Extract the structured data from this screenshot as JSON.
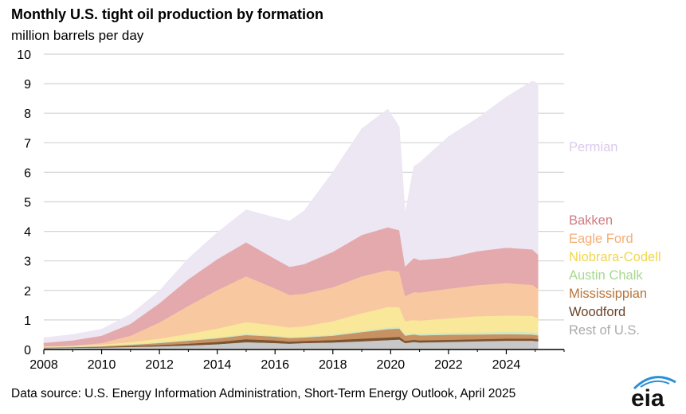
{
  "title": "Monthly U.S. tight oil production by formation",
  "subtitle": "million  barrels per day",
  "source": "Data source: U.S. Energy Information Administration, Short-Term Energy Outlook, April 2025",
  "logo_text": "eia",
  "chart_data": {
    "type": "area",
    "stacked": true,
    "title": "Monthly U.S. tight oil production by formation",
    "ylabel": "million  barrels per day",
    "xlim": [
      2008,
      2026
    ],
    "ylim": [
      0,
      10
    ],
    "xticks": [
      2008,
      2010,
      2012,
      2014,
      2016,
      2018,
      2020,
      2022,
      2024
    ],
    "yticks": [
      0,
      1,
      2,
      3,
      4,
      5,
      6,
      7,
      8,
      9,
      10
    ],
    "grid": "horizontal",
    "legend": "right, inline labels",
    "x": [
      2008.0,
      2009.0,
      2010.0,
      2011.0,
      2012.0,
      2013.0,
      2014.0,
      2015.0,
      2016.0,
      2016.5,
      2017.0,
      2018.0,
      2019.0,
      2019.9,
      2020.3,
      2020.5,
      2020.8,
      2021.0,
      2022.0,
      2023.0,
      2024.0,
      2024.9,
      2025.1
    ],
    "series": [
      {
        "name": "Rest of U.S.",
        "color": "#c8c8c8",
        "values": [
          0.05,
          0.06,
          0.07,
          0.09,
          0.11,
          0.14,
          0.18,
          0.25,
          0.22,
          0.2,
          0.22,
          0.24,
          0.28,
          0.32,
          0.34,
          0.22,
          0.26,
          0.24,
          0.26,
          0.28,
          0.3,
          0.3,
          0.28
        ]
      },
      {
        "name": "Woodford",
        "color": "#7a5331",
        "values": [
          0.01,
          0.01,
          0.02,
          0.03,
          0.04,
          0.06,
          0.08,
          0.1,
          0.09,
          0.07,
          0.07,
          0.08,
          0.09,
          0.09,
          0.09,
          0.07,
          0.07,
          0.07,
          0.07,
          0.07,
          0.07,
          0.07,
          0.07
        ]
      },
      {
        "name": "Mississippian",
        "color": "#c79162",
        "values": [
          0.01,
          0.01,
          0.02,
          0.04,
          0.07,
          0.1,
          0.12,
          0.14,
          0.13,
          0.12,
          0.12,
          0.15,
          0.22,
          0.28,
          0.28,
          0.18,
          0.18,
          0.17,
          0.17,
          0.16,
          0.15,
          0.14,
          0.13
        ]
      },
      {
        "name": "Austin Chalk",
        "color": "#cfe7c3",
        "values": [
          0.02,
          0.02,
          0.02,
          0.02,
          0.03,
          0.03,
          0.03,
          0.04,
          0.03,
          0.03,
          0.03,
          0.04,
          0.04,
          0.05,
          0.05,
          0.04,
          0.04,
          0.05,
          0.06,
          0.07,
          0.08,
          0.08,
          0.08
        ]
      },
      {
        "name": "Niobrara-Codell",
        "color": "#f9e79a",
        "values": [
          0.02,
          0.03,
          0.04,
          0.07,
          0.12,
          0.2,
          0.3,
          0.4,
          0.35,
          0.33,
          0.35,
          0.45,
          0.6,
          0.7,
          0.68,
          0.45,
          0.45,
          0.45,
          0.5,
          0.55,
          0.55,
          0.55,
          0.5
        ]
      },
      {
        "name": "Eagle Ford",
        "color": "#f8c9a1",
        "values": [
          0.0,
          0.0,
          0.05,
          0.22,
          0.55,
          0.95,
          1.3,
          1.55,
          1.25,
          1.1,
          1.1,
          1.15,
          1.25,
          1.25,
          1.2,
          0.85,
          0.95,
          0.95,
          1.0,
          1.05,
          1.1,
          1.05,
          1.0
        ]
      },
      {
        "name": "Bakken",
        "color": "#e4a9ac",
        "values": [
          0.12,
          0.18,
          0.25,
          0.4,
          0.65,
          0.9,
          1.05,
          1.15,
          1.0,
          0.95,
          1.0,
          1.2,
          1.4,
          1.45,
          1.4,
          1.0,
          1.15,
          1.1,
          1.05,
          1.15,
          1.2,
          1.2,
          1.15
        ]
      },
      {
        "name": "Permian",
        "color": "#ede6f3",
        "values": [
          0.17,
          0.2,
          0.22,
          0.32,
          0.42,
          0.7,
          0.9,
          1.1,
          1.4,
          1.55,
          1.8,
          2.7,
          3.6,
          4.0,
          3.5,
          1.8,
          3.1,
          3.3,
          4.1,
          4.5,
          5.1,
          5.7,
          5.8
        ]
      }
    ]
  }
}
